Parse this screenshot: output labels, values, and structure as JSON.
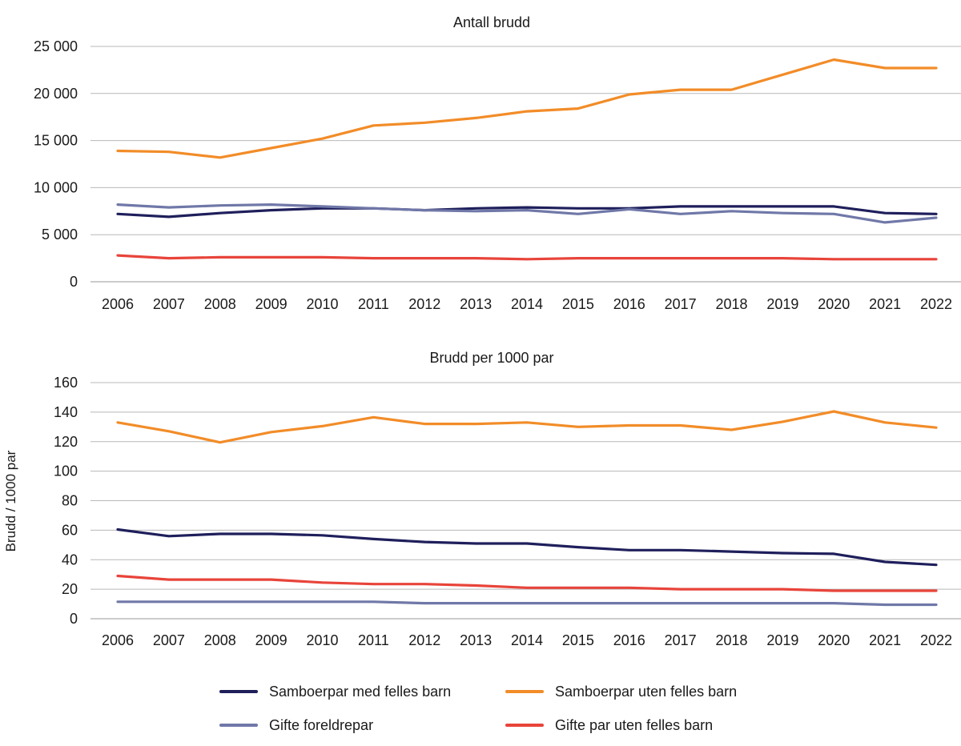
{
  "chart_data": [
    {
      "type": "line",
      "title": "Antall brudd",
      "xlabel": "",
      "ylabel": "",
      "ylim": [
        0,
        25000
      ],
      "yticks": [
        0,
        5000,
        10000,
        15000,
        20000,
        25000
      ],
      "ytick_labels": [
        "0",
        "5 000",
        "10 000",
        "15 000",
        "20 000",
        "25 000"
      ],
      "categories": [
        "2006",
        "2007",
        "2008",
        "2009",
        "2010",
        "2011",
        "2012",
        "2013",
        "2014",
        "2015",
        "2016",
        "2017",
        "2018",
        "2019",
        "2020",
        "2021",
        "2022"
      ],
      "series": [
        {
          "name": "Samboerpar med felles barn",
          "color": "#1f1f5c",
          "values": [
            7200,
            6900,
            7300,
            7600,
            7800,
            7800,
            7600,
            7800,
            7900,
            7800,
            7800,
            8000,
            8000,
            8000,
            8000,
            7300,
            7200
          ]
        },
        {
          "name": "Samboerpar uten felles barn",
          "color": "#f28c28",
          "values": [
            13900,
            13800,
            13200,
            14200,
            15200,
            16600,
            16900,
            17400,
            18100,
            18400,
            19900,
            20400,
            20400,
            22000,
            23600,
            22700,
            22700
          ]
        },
        {
          "name": "Gifte foreldrepar",
          "color": "#7078a8",
          "values": [
            8200,
            7900,
            8100,
            8200,
            8000,
            7800,
            7600,
            7500,
            7600,
            7200,
            7700,
            7200,
            7500,
            7300,
            7200,
            6300,
            6800
          ]
        },
        {
          "name": "Gifte par uten felles barn",
          "color": "#e8443a",
          "values": [
            2800,
            2500,
            2600,
            2600,
            2600,
            2500,
            2500,
            2500,
            2400,
            2500,
            2500,
            2500,
            2500,
            2500,
            2400,
            2400,
            2400
          ]
        }
      ]
    },
    {
      "type": "line",
      "title": "Brudd per 1000 par",
      "xlabel": "",
      "ylabel": "Brudd / 1000 par",
      "ylim": [
        0,
        160
      ],
      "yticks": [
        0,
        20,
        40,
        60,
        80,
        100,
        120,
        140,
        160
      ],
      "ytick_labels": [
        "0",
        "20",
        "40",
        "60",
        "80",
        "100",
        "120",
        "140",
        "160"
      ],
      "categories": [
        "2006",
        "2007",
        "2008",
        "2009",
        "2010",
        "2011",
        "2012",
        "2013",
        "2014",
        "2015",
        "2016",
        "2017",
        "2018",
        "2019",
        "2020",
        "2021",
        "2022"
      ],
      "series": [
        {
          "name": "Samboerpar med felles barn",
          "color": "#1f1f5c",
          "values": [
            60.5,
            56,
            57.5,
            57.5,
            56.5,
            54,
            52,
            51,
            51,
            48.5,
            46.5,
            46.5,
            45.5,
            44.5,
            44,
            38.5,
            36.5
          ]
        },
        {
          "name": "Samboerpar uten felles barn",
          "color": "#f28c28",
          "values": [
            133,
            127,
            119.5,
            126.5,
            130.5,
            136.5,
            132,
            132,
            133,
            130,
            131,
            131,
            128,
            133.5,
            140.5,
            133,
            129.5
          ]
        },
        {
          "name": "Gifte foreldrepar",
          "color": "#7078a8",
          "values": [
            11.5,
            11.5,
            11.5,
            11.5,
            11.5,
            11.5,
            10.5,
            10.5,
            10.5,
            10.5,
            10.5,
            10.5,
            10.5,
            10.5,
            10.5,
            9.5,
            9.5
          ]
        },
        {
          "name": "Gifte par uten felles barn",
          "color": "#e8443a",
          "values": [
            29,
            26.5,
            26.5,
            26.5,
            24.5,
            23.5,
            23.5,
            22.5,
            21,
            21,
            21,
            20,
            20,
            20,
            19,
            19,
            19
          ]
        }
      ]
    }
  ],
  "legend": {
    "items": [
      {
        "label": "Samboerpar med felles barn",
        "color": "#1f1f5c"
      },
      {
        "label": "Samboerpar uten felles barn",
        "color": "#f28c28"
      },
      {
        "label": "Gifte foreldrepar",
        "color": "#7078a8"
      },
      {
        "label": "Gifte par uten felles barn",
        "color": "#e8443a"
      }
    ]
  }
}
